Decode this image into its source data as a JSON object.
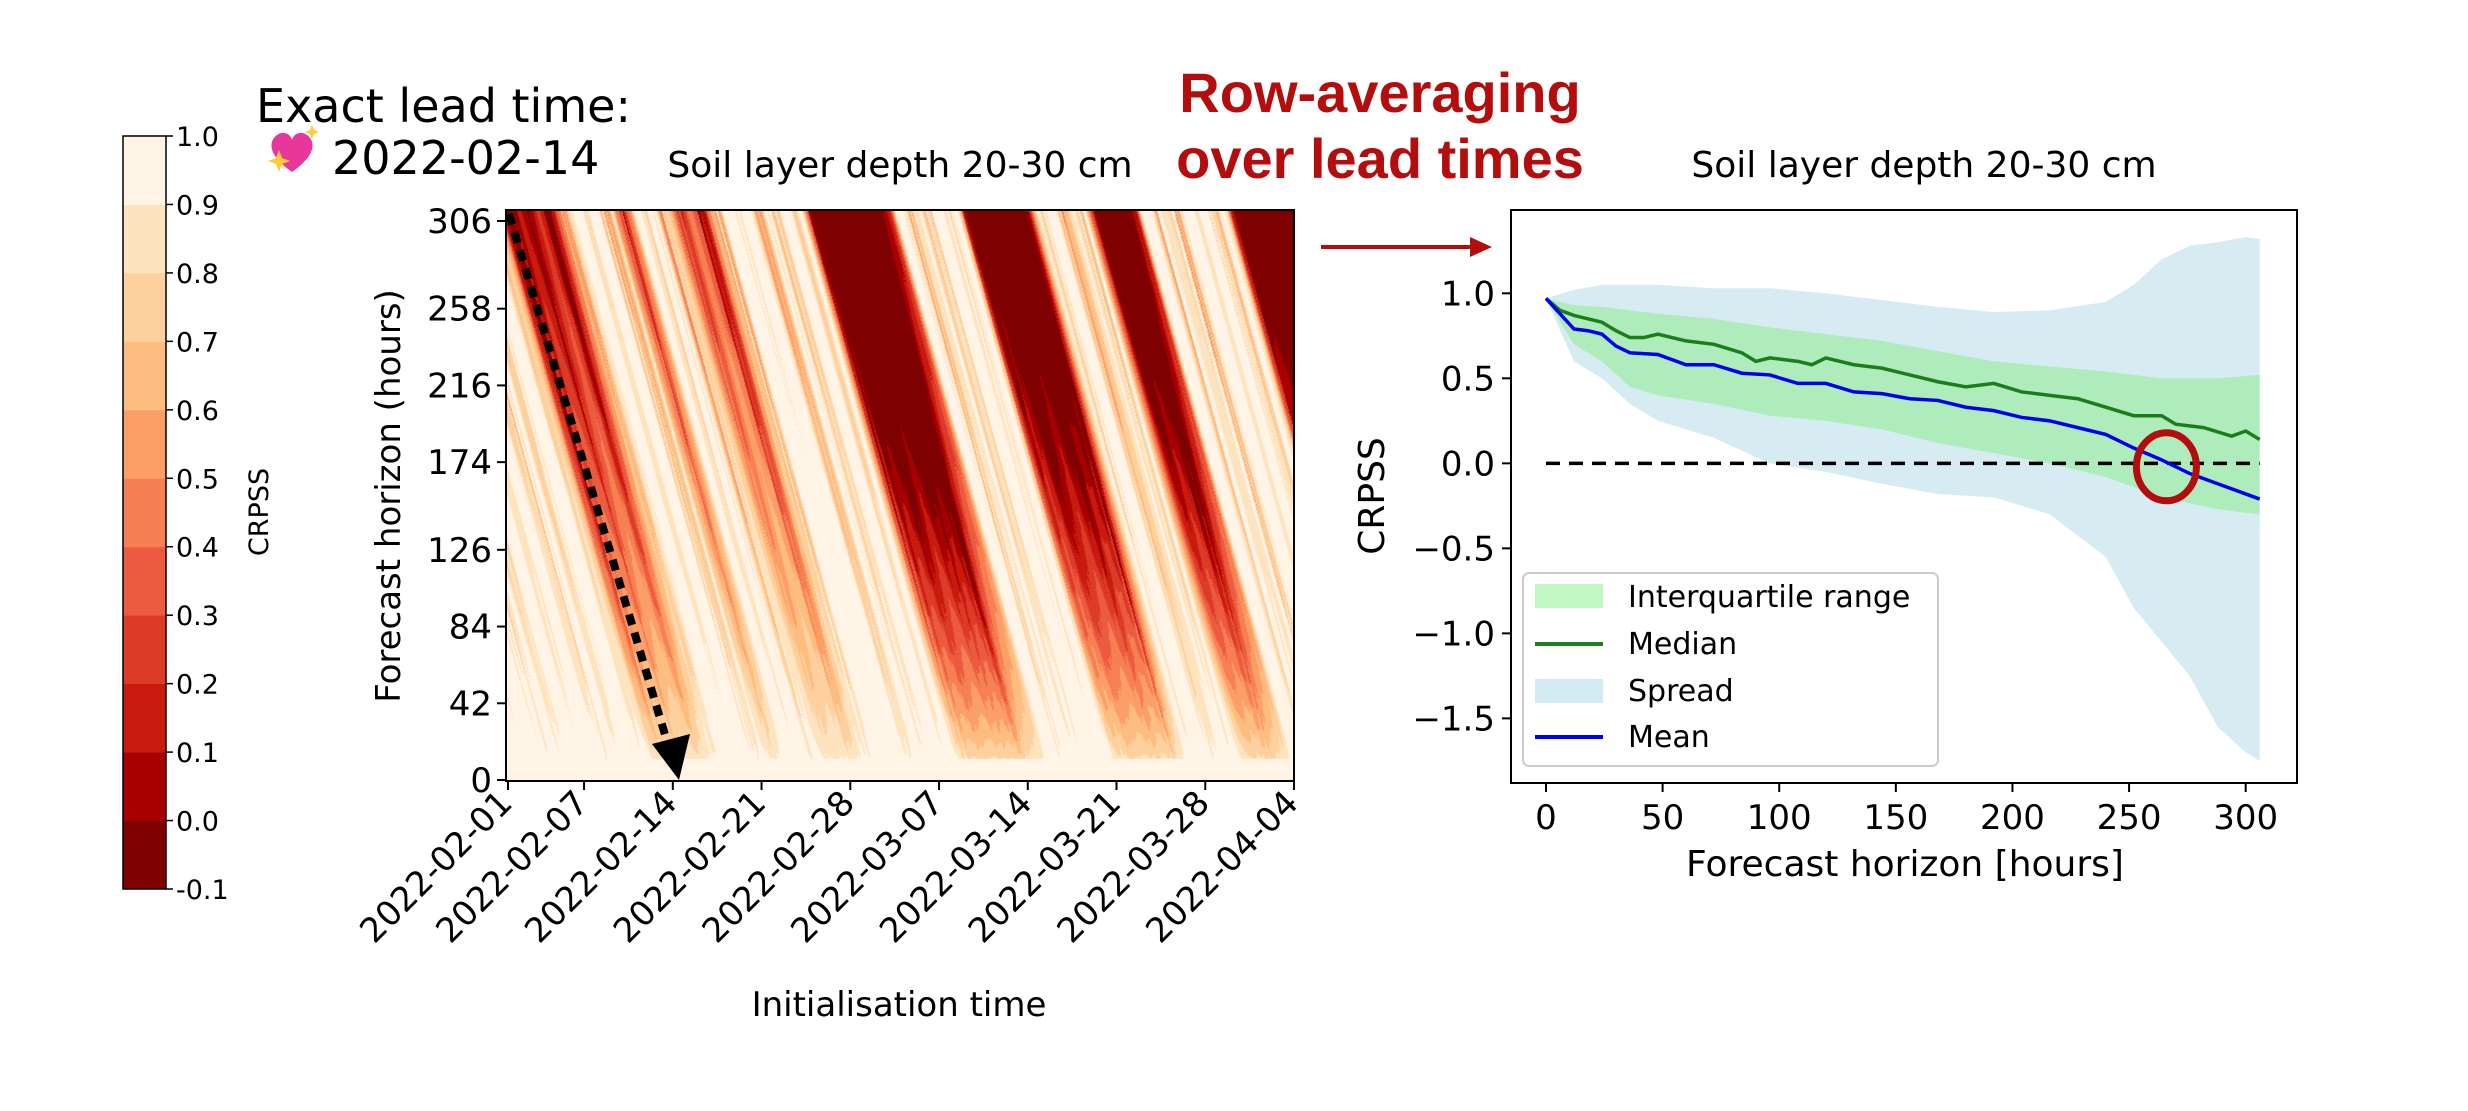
{
  "annotations": {
    "lead_time_label": "Exact lead time:",
    "lead_time_icon": "sparkling-heart-icon",
    "lead_time_date": "2022-02-14",
    "row_avg_line1": "Row-averaging",
    "row_avg_line2": "over lead times",
    "accent_color": "#b30d0d"
  },
  "chart_data": [
    {
      "type": "heatmap",
      "title": "Soil layer depth 20-30 cm",
      "xlabel": "Initialisation time",
      "ylabel": "Forecast horizon (hours)",
      "x_ticks": [
        "2022-02-01",
        "2022-02-07",
        "2022-02-14",
        "2022-02-21",
        "2022-02-28",
        "2022-03-07",
        "2022-03-14",
        "2022-03-21",
        "2022-03-28",
        "2022-04-04"
      ],
      "y_ticks": [
        0,
        42,
        84,
        126,
        174,
        216,
        258,
        306
      ],
      "xlim": [
        "2022-02-01",
        "2022-04-04"
      ],
      "ylim": [
        0,
        306
      ],
      "colorbar": {
        "label": "CRPSS",
        "ticks": [
          "1.0",
          "0.9",
          "0.8",
          "0.7",
          "0.6",
          "0.5",
          "0.4",
          "0.3",
          "0.2",
          "0.1",
          "0.0",
          "-0.1"
        ],
        "colors": [
          "#7f0000",
          "#a80000",
          "#c81a0f",
          "#dc3b27",
          "#ec5b3f",
          "#f67f53",
          "#fc9e67",
          "#fdbc80",
          "#fdd09e",
          "#fee3bf",
          "#fff4e6"
        ]
      },
      "annotation": "dotted arrow along the diagonal from (2022-02-01, 306 h) to (2022-02-14, 0 h)"
    },
    {
      "type": "line",
      "title": "Soil layer depth 20-30 cm",
      "xlabel": "Forecast horizon [hours]",
      "ylabel": "CRPSS",
      "xlim": [
        -15,
        322
      ],
      "ylim": [
        -1.88,
        1.49
      ],
      "x_ticks": [
        "0",
        "50",
        "100",
        "150",
        "200",
        "250",
        "300"
      ],
      "y_ticks": [
        "1.0",
        "0.5",
        "0.0",
        "−0.5",
        "−1.0",
        "−1.5"
      ],
      "y_tick_values": [
        1.0,
        0.5,
        0.0,
        -0.5,
        -1.0,
        -1.5
      ],
      "x_tick_values": [
        0,
        50,
        100,
        150,
        200,
        250,
        300
      ],
      "legend_position": "lower-left",
      "reference_line": 0.0,
      "highlight_circle": {
        "x": 266,
        "y": -0.02
      },
      "bands": [
        {
          "name": "Spread",
          "color": "#add8e6",
          "x": [
            0,
            12,
            24,
            36,
            48,
            72,
            96,
            120,
            144,
            168,
            192,
            216,
            240,
            252,
            264,
            276,
            288,
            300,
            306
          ],
          "upper": [
            0.97,
            1.02,
            1.05,
            1.05,
            1.05,
            1.03,
            1.03,
            1.0,
            0.96,
            0.92,
            0.89,
            0.9,
            0.95,
            1.05,
            1.2,
            1.28,
            1.3,
            1.33,
            1.32
          ],
          "lower": [
            0.97,
            0.6,
            0.5,
            0.35,
            0.25,
            0.15,
            0.0,
            -0.05,
            -0.12,
            -0.18,
            -0.2,
            -0.3,
            -0.55,
            -0.85,
            -1.05,
            -1.25,
            -1.55,
            -1.7,
            -1.75
          ]
        },
        {
          "name": "Interquartile range",
          "color": "#90ee90",
          "x": [
            0,
            12,
            24,
            36,
            48,
            72,
            96,
            120,
            144,
            168,
            192,
            216,
            240,
            264,
            288,
            306
          ],
          "upper": [
            0.97,
            0.93,
            0.92,
            0.9,
            0.88,
            0.85,
            0.8,
            0.76,
            0.72,
            0.66,
            0.6,
            0.57,
            0.54,
            0.5,
            0.5,
            0.52
          ],
          "lower": [
            0.97,
            0.7,
            0.6,
            0.45,
            0.4,
            0.35,
            0.28,
            0.25,
            0.2,
            0.12,
            0.06,
            0.0,
            -0.08,
            -0.2,
            -0.27,
            -0.3
          ]
        }
      ],
      "series": [
        {
          "name": "Median",
          "color": "#1a7f1a",
          "x": [
            0,
            6,
            12,
            24,
            30,
            36,
            42,
            48,
            60,
            72,
            84,
            90,
            96,
            108,
            114,
            120,
            132,
            144,
            156,
            168,
            180,
            192,
            204,
            216,
            228,
            240,
            252,
            264,
            270,
            282,
            294,
            300,
            306
          ],
          "y": [
            0.97,
            0.9,
            0.87,
            0.83,
            0.78,
            0.74,
            0.74,
            0.76,
            0.72,
            0.7,
            0.65,
            0.6,
            0.62,
            0.6,
            0.58,
            0.62,
            0.58,
            0.56,
            0.52,
            0.48,
            0.45,
            0.47,
            0.42,
            0.4,
            0.38,
            0.33,
            0.28,
            0.28,
            0.23,
            0.21,
            0.16,
            0.19,
            0.14
          ]
        },
        {
          "name": "Mean",
          "color": "#0000ee",
          "x": [
            0,
            6,
            12,
            18,
            24,
            30,
            36,
            48,
            60,
            72,
            84,
            96,
            108,
            120,
            132,
            144,
            156,
            168,
            180,
            192,
            204,
            216,
            228,
            240,
            252,
            264,
            276,
            288,
            300,
            306
          ],
          "y": [
            0.97,
            0.88,
            0.79,
            0.78,
            0.76,
            0.69,
            0.65,
            0.64,
            0.58,
            0.58,
            0.53,
            0.52,
            0.47,
            0.47,
            0.42,
            0.41,
            0.38,
            0.37,
            0.33,
            0.31,
            0.27,
            0.25,
            0.21,
            0.17,
            0.09,
            0.02,
            -0.06,
            -0.12,
            -0.18,
            -0.21
          ]
        }
      ],
      "legend": [
        "Interquartile range",
        "Median",
        "Spread",
        "Mean"
      ]
    }
  ]
}
